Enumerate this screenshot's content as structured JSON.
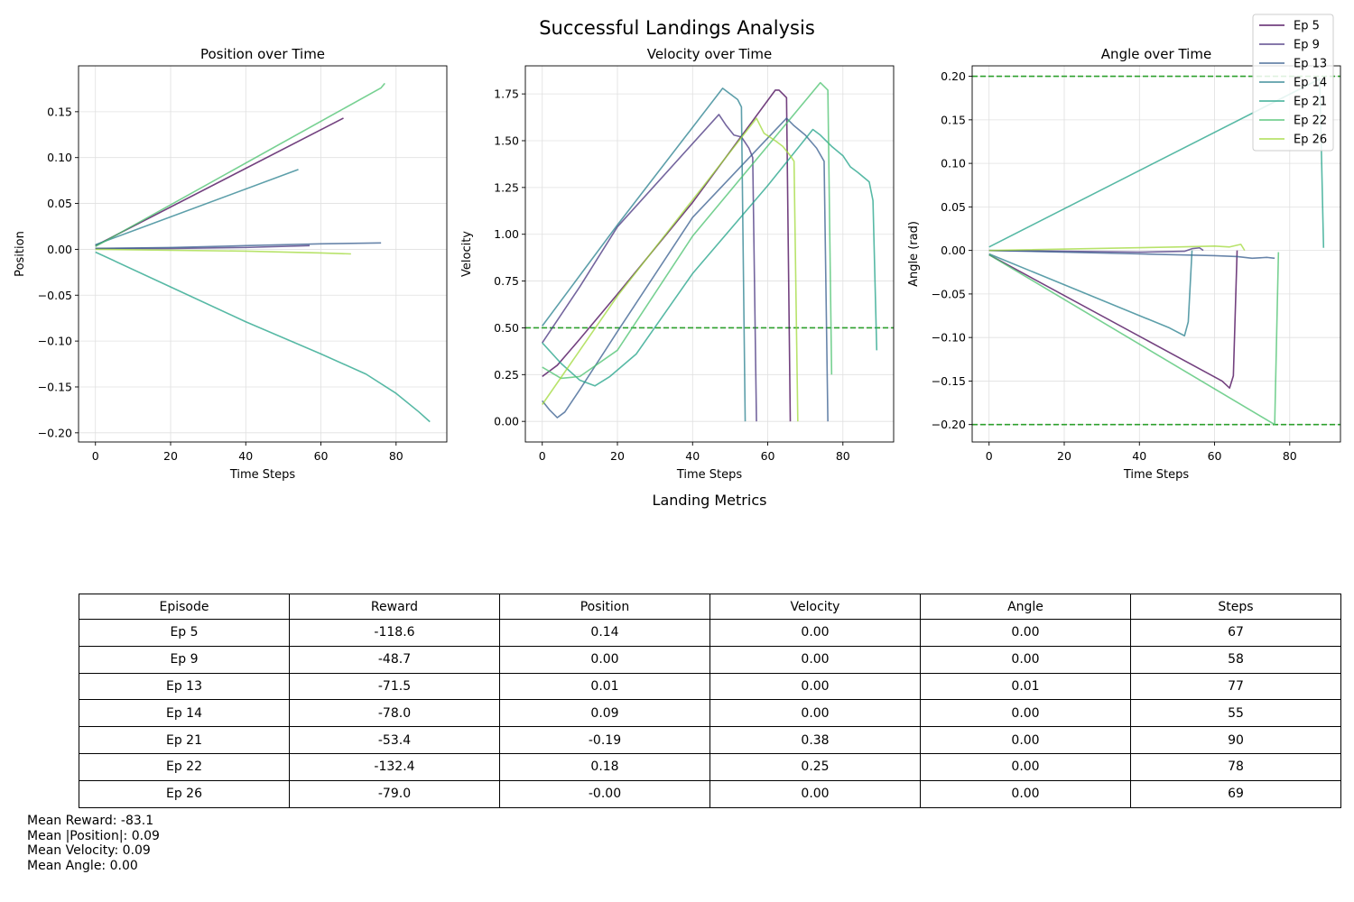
{
  "suptitle": "Successful Landings Analysis",
  "section_title": "Landing Metrics",
  "colors": {
    "reference_line": "#2ca02c",
    "grid": "#e0e0e0",
    "series": [
      "#440154",
      "#46327e",
      "#365c8d",
      "#277f8e",
      "#1fa187",
      "#4ac16d",
      "#a0da39"
    ]
  },
  "chart_data": [
    {
      "type": "line",
      "title": "Position over Time",
      "xlabel": "Time Steps",
      "ylabel": "Position",
      "xlim": [
        -4.5,
        93.5
      ],
      "ylim": [
        -0.21,
        0.2
      ],
      "xticks": [
        0,
        20,
        40,
        60,
        80
      ],
      "yticks": [
        -0.2,
        -0.15,
        -0.1,
        -0.05,
        0.0,
        0.05,
        0.1,
        0.15
      ],
      "ytick_labels": [
        "−0.20",
        "−0.15",
        "−0.10",
        "−0.05",
        "0.00",
        "0.05",
        "0.10",
        "0.15"
      ],
      "grid": true,
      "series": [
        {
          "name": "Ep 5",
          "points": [
            [
              0,
              0.004
            ],
            [
              66,
              0.143
            ]
          ]
        },
        {
          "name": "Ep 9",
          "points": [
            [
              0,
              0.001
            ],
            [
              20,
              0.001
            ],
            [
              40,
              0.002
            ],
            [
              57,
              0.004
            ]
          ]
        },
        {
          "name": "Ep 13",
          "points": [
            [
              0,
              0.001
            ],
            [
              20,
              0.002
            ],
            [
              40,
              0.004
            ],
            [
              60,
              0.006
            ],
            [
              76,
              0.007
            ]
          ]
        },
        {
          "name": "Ep 14",
          "points": [
            [
              0,
              0.005
            ],
            [
              54,
              0.087
            ]
          ]
        },
        {
          "name": "Ep 21",
          "points": [
            [
              0,
              -0.003
            ],
            [
              20,
              -0.041
            ],
            [
              40,
              -0.079
            ],
            [
              60,
              -0.114
            ],
            [
              72,
              -0.136
            ],
            [
              80,
              -0.157
            ],
            [
              86,
              -0.177
            ],
            [
              89,
              -0.188
            ]
          ]
        },
        {
          "name": "Ep 22",
          "points": [
            [
              0,
              0.003
            ],
            [
              76,
              0.176
            ],
            [
              77,
              0.181
            ]
          ]
        },
        {
          "name": "Ep 26",
          "points": [
            [
              0,
              0.0
            ],
            [
              20,
              -0.001
            ],
            [
              40,
              -0.002
            ],
            [
              60,
              -0.004
            ],
            [
              68,
              -0.005
            ]
          ]
        }
      ]
    },
    {
      "type": "line",
      "title": "Velocity over Time",
      "xlabel": "Time Steps",
      "ylabel": "Velocity",
      "xlim": [
        -4.5,
        93.5
      ],
      "ylim": [
        -0.11,
        1.9
      ],
      "xticks": [
        0,
        20,
        40,
        60,
        80
      ],
      "yticks": [
        0.0,
        0.25,
        0.5,
        0.75,
        1.0,
        1.25,
        1.5,
        1.75
      ],
      "ytick_labels": [
        "0.00",
        "0.25",
        "0.50",
        "0.75",
        "1.00",
        "1.25",
        "1.50",
        "1.75"
      ],
      "reference_lines": [
        0.5
      ],
      "grid": true,
      "series": [
        {
          "name": "Ep 5",
          "points": [
            [
              0,
              0.24
            ],
            [
              4,
              0.3
            ],
            [
              10,
              0.44
            ],
            [
              20,
              0.68
            ],
            [
              40,
              1.17
            ],
            [
              62,
              1.77
            ],
            [
              63,
              1.77
            ],
            [
              64,
              1.75
            ],
            [
              65,
              1.73
            ],
            [
              66,
              0.0
            ]
          ]
        },
        {
          "name": "Ep 9",
          "points": [
            [
              0,
              0.42
            ],
            [
              10,
              0.72
            ],
            [
              20,
              1.04
            ],
            [
              47,
              1.64
            ],
            [
              49,
              1.58
            ],
            [
              51,
              1.53
            ],
            [
              53,
              1.52
            ],
            [
              55,
              1.46
            ],
            [
              56,
              1.41
            ],
            [
              57,
              0.0
            ]
          ]
        },
        {
          "name": "Ep 13",
          "points": [
            [
              0,
              0.11
            ],
            [
              2,
              0.06
            ],
            [
              4,
              0.02
            ],
            [
              6,
              0.05
            ],
            [
              10,
              0.17
            ],
            [
              20,
              0.48
            ],
            [
              40,
              1.09
            ],
            [
              65,
              1.62
            ],
            [
              67,
              1.58
            ],
            [
              70,
              1.53
            ],
            [
              73,
              1.46
            ],
            [
              75,
              1.39
            ],
            [
              76,
              0.0
            ]
          ]
        },
        {
          "name": "Ep 14",
          "points": [
            [
              0,
              0.51
            ],
            [
              20,
              1.05
            ],
            [
              48,
              1.78
            ],
            [
              50,
              1.75
            ],
            [
              52,
              1.72
            ],
            [
              53,
              1.68
            ],
            [
              54,
              0.0
            ]
          ]
        },
        {
          "name": "Ep 21",
          "points": [
            [
              0,
              0.42
            ],
            [
              5,
              0.31
            ],
            [
              10,
              0.22
            ],
            [
              14,
              0.19
            ],
            [
              18,
              0.24
            ],
            [
              25,
              0.36
            ],
            [
              40,
              0.79
            ],
            [
              60,
              1.26
            ],
            [
              72,
              1.56
            ],
            [
              74,
              1.53
            ],
            [
              77,
              1.47
            ],
            [
              80,
              1.42
            ],
            [
              82,
              1.36
            ],
            [
              84,
              1.33
            ],
            [
              87,
              1.28
            ],
            [
              88,
              1.18
            ],
            [
              89,
              0.38
            ]
          ]
        },
        {
          "name": "Ep 22",
          "points": [
            [
              0,
              0.29
            ],
            [
              5,
              0.23
            ],
            [
              10,
              0.24
            ],
            [
              20,
              0.38
            ],
            [
              40,
              0.99
            ],
            [
              74,
              1.81
            ],
            [
              75,
              1.79
            ],
            [
              76,
              1.77
            ],
            [
              77,
              0.25
            ]
          ]
        },
        {
          "name": "Ep 26",
          "points": [
            [
              0,
              0.09
            ],
            [
              20,
              0.67
            ],
            [
              57,
              1.62
            ],
            [
              59,
              1.54
            ],
            [
              62,
              1.5
            ],
            [
              64,
              1.47
            ],
            [
              66,
              1.42
            ],
            [
              67,
              1.39
            ],
            [
              68,
              0.0
            ]
          ]
        }
      ]
    },
    {
      "type": "line",
      "title": "Angle over Time",
      "xlabel": "Time Steps",
      "ylabel": "Angle (rad)",
      "xlim": [
        -4.5,
        93.5
      ],
      "ylim": [
        -0.22,
        0.212
      ],
      "xticks": [
        0,
        20,
        40,
        60,
        80
      ],
      "yticks": [
        -0.2,
        -0.15,
        -0.1,
        -0.05,
        0.0,
        0.05,
        0.1,
        0.15,
        0.2
      ],
      "ytick_labels": [
        "−0.20",
        "−0.15",
        "−0.10",
        "−0.05",
        "0.00",
        "0.05",
        "0.10",
        "0.15",
        "0.20"
      ],
      "reference_lines": [
        0.2,
        -0.2
      ],
      "grid": true,
      "series": [
        {
          "name": "Ep 5",
          "points": [
            [
              0,
              -0.005
            ],
            [
              62,
              -0.15
            ],
            [
              64,
              -0.158
            ],
            [
              65,
              -0.144
            ],
            [
              66,
              0.0
            ]
          ]
        },
        {
          "name": "Ep 9",
          "points": [
            [
              0,
              0.0
            ],
            [
              40,
              -0.002
            ],
            [
              52,
              -0.001
            ],
            [
              54,
              0.002
            ],
            [
              56,
              0.003
            ],
            [
              57,
              0.0
            ]
          ]
        },
        {
          "name": "Ep 13",
          "points": [
            [
              0,
              0.0
            ],
            [
              40,
              -0.004
            ],
            [
              60,
              -0.006
            ],
            [
              66,
              -0.007
            ],
            [
              70,
              -0.009
            ],
            [
              74,
              -0.008
            ],
            [
              76,
              -0.009
            ]
          ]
        },
        {
          "name": "Ep 14",
          "points": [
            [
              0,
              -0.004
            ],
            [
              48,
              -0.089
            ],
            [
              52,
              -0.098
            ],
            [
              53,
              -0.082
            ],
            [
              54,
              0.0
            ]
          ]
        },
        {
          "name": "Ep 21",
          "points": [
            [
              0,
              0.004
            ],
            [
              88,
              0.197
            ],
            [
              89,
              0.003
            ]
          ]
        },
        {
          "name": "Ep 22",
          "points": [
            [
              0,
              -0.005
            ],
            [
              76,
              -0.2
            ],
            [
              77,
              -0.002
            ]
          ]
        },
        {
          "name": "Ep 26",
          "points": [
            [
              0,
              0.0
            ],
            [
              50,
              0.004
            ],
            [
              60,
              0.005
            ],
            [
              64,
              0.004
            ],
            [
              67,
              0.007
            ],
            [
              68,
              0.0
            ]
          ]
        }
      ]
    }
  ],
  "legend": {
    "location": "top-right",
    "entries": [
      "Ep 5",
      "Ep 9",
      "Ep 13",
      "Ep 14",
      "Ep 21",
      "Ep 22",
      "Ep 26"
    ]
  },
  "table": {
    "columns": [
      "Episode",
      "Reward",
      "Position",
      "Velocity",
      "Angle",
      "Steps"
    ],
    "rows": [
      [
        "Ep 5",
        "-118.6",
        "0.14",
        "0.00",
        "0.00",
        "67"
      ],
      [
        "Ep 9",
        "-48.7",
        "0.00",
        "0.00",
        "0.00",
        "58"
      ],
      [
        "Ep 13",
        "-71.5",
        "0.01",
        "0.00",
        "0.01",
        "77"
      ],
      [
        "Ep 14",
        "-78.0",
        "0.09",
        "0.00",
        "0.00",
        "55"
      ],
      [
        "Ep 21",
        "-53.4",
        "-0.19",
        "0.38",
        "0.00",
        "90"
      ],
      [
        "Ep 22",
        "-132.4",
        "0.18",
        "0.25",
        "0.00",
        "78"
      ],
      [
        "Ep 26",
        "-79.0",
        "-0.00",
        "0.00",
        "0.00",
        "69"
      ]
    ]
  },
  "summary": {
    "mean_reward": "Mean Reward: -83.1",
    "mean_position": "Mean |Position|: 0.09",
    "mean_velocity": "Mean Velocity: 0.09",
    "mean_angle": "Mean Angle: 0.00"
  }
}
